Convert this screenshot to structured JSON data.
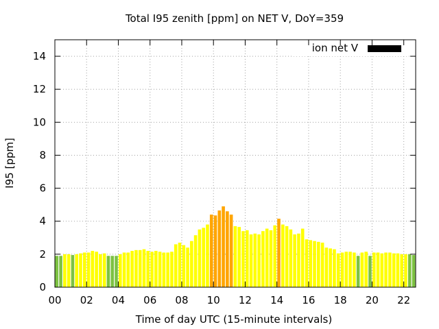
{
  "chart_data": {
    "type": "bar",
    "title": "Total I95 zenith [ppm] on NET V, DoY=359",
    "xlabel": "Time of day UTC (15-minute intervals)",
    "ylabel": "I95 [ppm]",
    "xlim": [
      0,
      22.75
    ],
    "ylim": [
      0,
      15
    ],
    "xtick_labels": [
      "00",
      "02",
      "04",
      "06",
      "08",
      "10",
      "12",
      "14",
      "16",
      "18",
      "20",
      "22"
    ],
    "ytick_labels": [
      "0",
      "2",
      "4",
      "6",
      "8",
      "10",
      "12",
      "14"
    ],
    "grid": true,
    "legend": {
      "position": "top-right",
      "label": "ion net V",
      "color": "#000000"
    },
    "colors": {
      "low": "#7dc242",
      "normal": "#ffff00",
      "medium": "#ffd700",
      "high": "#ffa500"
    },
    "values": [
      1.9,
      1.9,
      2.0,
      2.0,
      1.95,
      2.0,
      2.05,
      2.1,
      2.1,
      2.2,
      2.15,
      2.0,
      2.05,
      1.9,
      1.9,
      1.9,
      2.0,
      2.1,
      2.1,
      2.2,
      2.25,
      2.25,
      2.3,
      2.2,
      2.15,
      2.2,
      2.15,
      2.1,
      2.1,
      2.15,
      2.6,
      2.7,
      2.55,
      2.4,
      2.8,
      3.15,
      3.5,
      3.6,
      3.8,
      4.4,
      4.35,
      4.65,
      4.9,
      4.6,
      4.4,
      3.7,
      3.65,
      3.4,
      3.45,
      3.2,
      3.25,
      3.2,
      3.4,
      3.55,
      3.45,
      3.75,
      4.15,
      3.8,
      3.7,
      3.5,
      3.2,
      3.25,
      3.55,
      2.9,
      2.85,
      2.8,
      2.75,
      2.7,
      2.4,
      2.35,
      2.3,
      2.05,
      2.1,
      2.15,
      2.15,
      2.1,
      1.9,
      2.1,
      2.15,
      1.9,
      2.1,
      2.1,
      2.05,
      2.1,
      2.1,
      2.05,
      2.05,
      2.0,
      2.0,
      2.0,
      1.95
    ],
    "levels": [
      "low",
      "low",
      "normal",
      "normal",
      "low",
      "normal",
      "normal",
      "normal",
      "normal",
      "normal",
      "normal",
      "normal",
      "normal",
      "low",
      "low",
      "low",
      "normal",
      "normal",
      "normal",
      "normal",
      "normal",
      "normal",
      "normal",
      "normal",
      "normal",
      "normal",
      "normal",
      "normal",
      "normal",
      "normal",
      "normal",
      "normal",
      "normal",
      "normal",
      "normal",
      "normal",
      "normal",
      "normal",
      "normal",
      "high",
      "high",
      "high",
      "high",
      "high",
      "high",
      "normal",
      "normal",
      "normal",
      "normal",
      "normal",
      "normal",
      "normal",
      "normal",
      "normal",
      "normal",
      "normal",
      "high",
      "normal",
      "normal",
      "normal",
      "normal",
      "normal",
      "normal",
      "normal",
      "normal",
      "normal",
      "normal",
      "normal",
      "normal",
      "normal",
      "normal",
      "normal",
      "normal",
      "normal",
      "normal",
      "normal",
      "low",
      "normal",
      "normal",
      "low",
      "normal",
      "normal",
      "normal",
      "normal",
      "normal",
      "normal",
      "normal",
      "normal",
      "normal",
      "low",
      "low"
    ]
  }
}
